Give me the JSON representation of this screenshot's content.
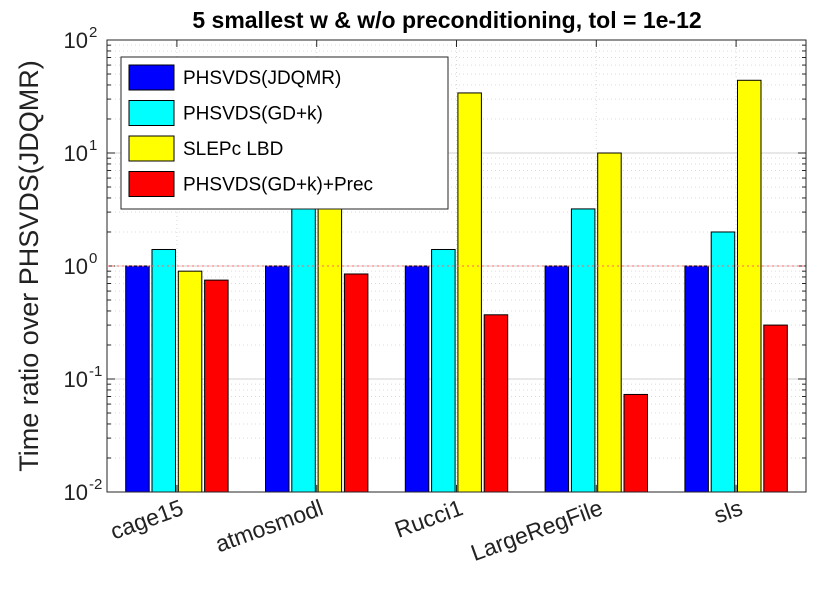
{
  "chart_data": {
    "type": "bar",
    "title": "5 smallest w & w/o preconditioning, tol = 1e-12",
    "xlabel": "",
    "ylabel": "Time ratio over PHSVDS(JDQMR)",
    "yscale": "log",
    "ylim": [
      0.01,
      100
    ],
    "yticks": [
      {
        "base": "10",
        "exp": "-2",
        "value": 0.01
      },
      {
        "base": "10",
        "exp": "-1",
        "value": 0.1
      },
      {
        "base": "10",
        "exp": "0",
        "value": 1
      },
      {
        "base": "10",
        "exp": "1",
        "value": 10
      },
      {
        "base": "10",
        "exp": "2",
        "value": 100
      }
    ],
    "reference_line": 1,
    "categories": [
      "cage15",
      "atmosmodl",
      "Rucci1",
      "LargeRegFile",
      "sls"
    ],
    "series": [
      {
        "name": "PHSVDS(JDQMR)",
        "color": "#0000ff",
        "values": [
          1,
          1,
          1,
          1,
          1
        ]
      },
      {
        "name": "PHSVDS(GD+k)",
        "color": "#00ffff",
        "values": [
          1.4,
          3.2,
          1.4,
          3.2,
          2.0
        ]
      },
      {
        "name": "SLEPc LBD",
        "color": "#ffff00",
        "values": [
          0.9,
          3.2,
          34,
          10,
          44
        ]
      },
      {
        "name": "PHSVDS(GD+k)+Prec",
        "color": "#ff0000",
        "values": [
          0.75,
          0.85,
          0.37,
          0.073,
          0.3
        ]
      }
    ],
    "legend_position": "top-left",
    "grid": true
  }
}
